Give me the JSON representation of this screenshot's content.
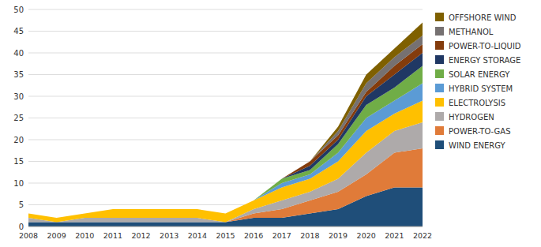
{
  "chart_data": {
    "type": "area",
    "stacked": true,
    "x": [
      2008,
      2009,
      2010,
      2011,
      2012,
      2013,
      2014,
      2015,
      2016,
      2017,
      2018,
      2019,
      2020,
      2021,
      2022
    ],
    "series": [
      {
        "name": "WIND ENERGY",
        "color": "#1F4E79",
        "values": [
          1,
          1,
          1,
          1,
          1,
          1,
          1,
          1,
          2,
          2,
          3,
          4,
          7,
          9,
          9
        ]
      },
      {
        "name": "POWER-TO-GAS",
        "color": "#E07B39",
        "values": [
          0,
          0,
          0,
          0,
          0,
          0,
          0,
          0,
          1,
          2,
          3,
          4,
          5,
          8,
          9
        ]
      },
      {
        "name": "HYDROGEN",
        "color": "#AEAAAA",
        "values": [
          1,
          0,
          1,
          1,
          1,
          1,
          1,
          0,
          1,
          2,
          2,
          3,
          5,
          5,
          6
        ]
      },
      {
        "name": "ELECTROLYSIS",
        "color": "#FFC000",
        "values": [
          1,
          1,
          1,
          2,
          2,
          2,
          2,
          2,
          2,
          3,
          3,
          4,
          5,
          4,
          5
        ]
      },
      {
        "name": "HYBRID SYSTEM",
        "color": "#5B9BD5",
        "values": [
          0,
          0,
          0,
          0,
          0,
          0,
          0,
          0,
          0,
          1,
          1,
          2,
          3,
          3,
          4
        ]
      },
      {
        "name": "SOLAR ENERGY",
        "color": "#70AD47",
        "values": [
          0,
          0,
          0,
          0,
          0,
          0,
          0,
          0,
          0,
          1,
          1,
          2,
          3,
          3,
          4
        ]
      },
      {
        "name": "ENERGY STORAGE",
        "color": "#203864",
        "values": [
          0,
          0,
          0,
          0,
          0,
          0,
          0,
          0,
          0,
          0,
          1,
          1,
          2,
          3,
          3
        ]
      },
      {
        "name": "POWER-TO-LIQUID",
        "color": "#843C0C",
        "values": [
          0,
          0,
          0,
          0,
          0,
          0,
          0,
          0,
          0,
          0,
          1,
          1,
          1,
          2,
          2
        ]
      },
      {
        "name": "METHANOL",
        "color": "#767171",
        "values": [
          0,
          0,
          0,
          0,
          0,
          0,
          0,
          0,
          0,
          0,
          0,
          1,
          2,
          2,
          2
        ]
      },
      {
        "name": "OFFSHORE WIND",
        "color": "#7F6000",
        "values": [
          0,
          0,
          0,
          0,
          0,
          0,
          0,
          0,
          0,
          0,
          0,
          1,
          2,
          2,
          3
        ]
      }
    ],
    "xlim": [
      2008,
      2022
    ],
    "xticks": [
      2008,
      2009,
      2010,
      2011,
      2012,
      2013,
      2014,
      2015,
      2016,
      2017,
      2018,
      2019,
      2020,
      2021,
      2022
    ],
    "ylim": [
      0,
      50
    ],
    "yticks": [
      0,
      5,
      10,
      15,
      20,
      25,
      30,
      35,
      40,
      45,
      50
    ],
    "grid": true,
    "legend": "right"
  }
}
